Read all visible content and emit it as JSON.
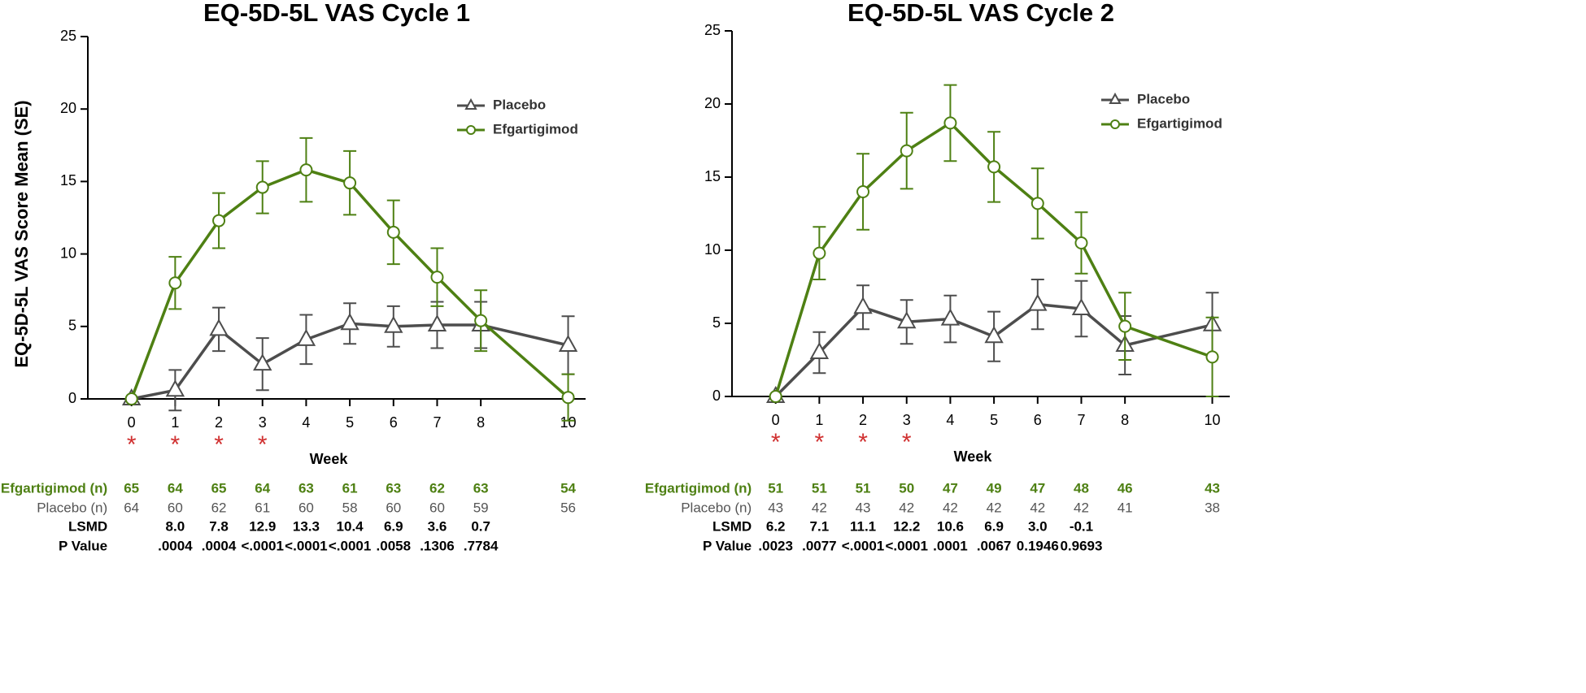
{
  "chart_data": [
    {
      "type": "line",
      "title": "EQ-5D-5L VAS Cycle 1",
      "y_label": "EQ-5D-5L VAS Score Mean (SE)",
      "x_label": "Week",
      "x": [
        0,
        1,
        2,
        3,
        4,
        5,
        6,
        7,
        8,
        10
      ],
      "xlim": [
        -1,
        10.4
      ],
      "xticks": [
        0,
        1,
        2,
        3,
        4,
        5,
        6,
        7,
        8,
        10
      ],
      "ylim": [
        0,
        25
      ],
      "yticks": [
        0,
        5,
        10,
        15,
        20,
        25
      ],
      "legend": "upper right",
      "series": [
        {
          "name": "Placebo",
          "color": "#4d4d4d",
          "marker": "triangle",
          "values": [
            0,
            0.6,
            4.8,
            2.4,
            4.1,
            5.2,
            5.0,
            5.1,
            5.1,
            3.7
          ],
          "errors": [
            0,
            1.4,
            1.5,
            1.8,
            1.7,
            1.4,
            1.4,
            1.6,
            1.6,
            2.0
          ]
        },
        {
          "name": "Efgartigimod",
          "color": "#4e8013",
          "marker": "circle",
          "values": [
            0,
            8.0,
            12.3,
            14.6,
            15.8,
            14.9,
            11.5,
            8.4,
            5.4,
            0.1
          ],
          "errors": [
            0,
            1.8,
            1.9,
            1.8,
            2.2,
            2.2,
            2.2,
            2.0,
            2.1,
            1.6
          ]
        }
      ],
      "annotations": [
        {
          "x": 0,
          "text": "*"
        },
        {
          "x": 1,
          "text": "*"
        },
        {
          "x": 2,
          "text": "*"
        },
        {
          "x": 3,
          "text": "*"
        }
      ],
      "table": [
        {
          "label": "Efgartigimod (n)",
          "cells": [
            "65",
            "64",
            "65",
            "64",
            "63",
            "61",
            "63",
            "62",
            "63",
            "54"
          ]
        },
        {
          "label": "Placebo (n)",
          "cells": [
            "64",
            "60",
            "62",
            "61",
            "60",
            "58",
            "60",
            "60",
            "59",
            "56"
          ]
        },
        {
          "label": "LSMD",
          "cells": [
            null,
            "8.0",
            "7.8",
            "12.9",
            "13.3",
            "10.4",
            "6.9",
            "3.6",
            "0.7",
            null
          ]
        },
        {
          "label": "P Value",
          "cells": [
            null,
            ".0004",
            ".0004",
            "<.0001",
            "<.0001",
            "<.0001",
            ".0058",
            ".1306",
            ".7784",
            null
          ]
        }
      ]
    },
    {
      "type": "line",
      "title": "EQ-5D-5L VAS Cycle 2",
      "x_label": "Week",
      "x": [
        0,
        1,
        2,
        3,
        4,
        5,
        6,
        7,
        8,
        10
      ],
      "xlim": [
        -1,
        10.4
      ],
      "xticks": [
        0,
        1,
        2,
        3,
        4,
        5,
        6,
        7,
        8,
        10
      ],
      "ylim": [
        0,
        25
      ],
      "yticks": [
        0,
        5,
        10,
        15,
        20,
        25
      ],
      "legend": "upper right",
      "series": [
        {
          "name": "Placebo",
          "color": "#4d4d4d",
          "marker": "triangle",
          "values": [
            0,
            3.0,
            6.1,
            5.1,
            5.3,
            4.1,
            6.3,
            6.0,
            3.5,
            4.9
          ],
          "errors": [
            0,
            1.4,
            1.5,
            1.5,
            1.6,
            1.7,
            1.7,
            1.9,
            2.0,
            2.2
          ]
        },
        {
          "name": "Efgartigimod",
          "color": "#4e8013",
          "marker": "circle",
          "values": [
            0,
            9.8,
            14.0,
            16.8,
            18.7,
            15.7,
            13.2,
            10.5,
            4.8,
            2.7
          ],
          "errors": [
            0,
            1.8,
            2.6,
            2.6,
            2.6,
            2.4,
            2.4,
            2.1,
            2.3,
            2.7
          ]
        }
      ],
      "annotations": [
        {
          "x": 0,
          "text": "*"
        },
        {
          "x": 1,
          "text": "*"
        },
        {
          "x": 2,
          "text": "*"
        },
        {
          "x": 3,
          "text": "*"
        }
      ],
      "table": [
        {
          "label": "Efgartigimod (n)",
          "cells": [
            "51",
            "51",
            "51",
            "50",
            "47",
            "49",
            "47",
            "48",
            "46",
            "43"
          ]
        },
        {
          "label": "Placebo (n)",
          "cells": [
            "43",
            "42",
            "43",
            "42",
            "42",
            "42",
            "42",
            "42",
            "41",
            "38"
          ]
        },
        {
          "label": "LSMD",
          "cells": [
            "6.2",
            "7.1",
            "11.1",
            "12.2",
            "10.6",
            "6.9",
            "3.0",
            "-0.1",
            null,
            null
          ]
        },
        {
          "label": "P Value",
          "cells": [
            ".0023",
            ".0077",
            "<.0001",
            "<.0001",
            ".0001",
            ".0067",
            "0.1946",
            "0.9693",
            null,
            null
          ]
        }
      ]
    }
  ]
}
